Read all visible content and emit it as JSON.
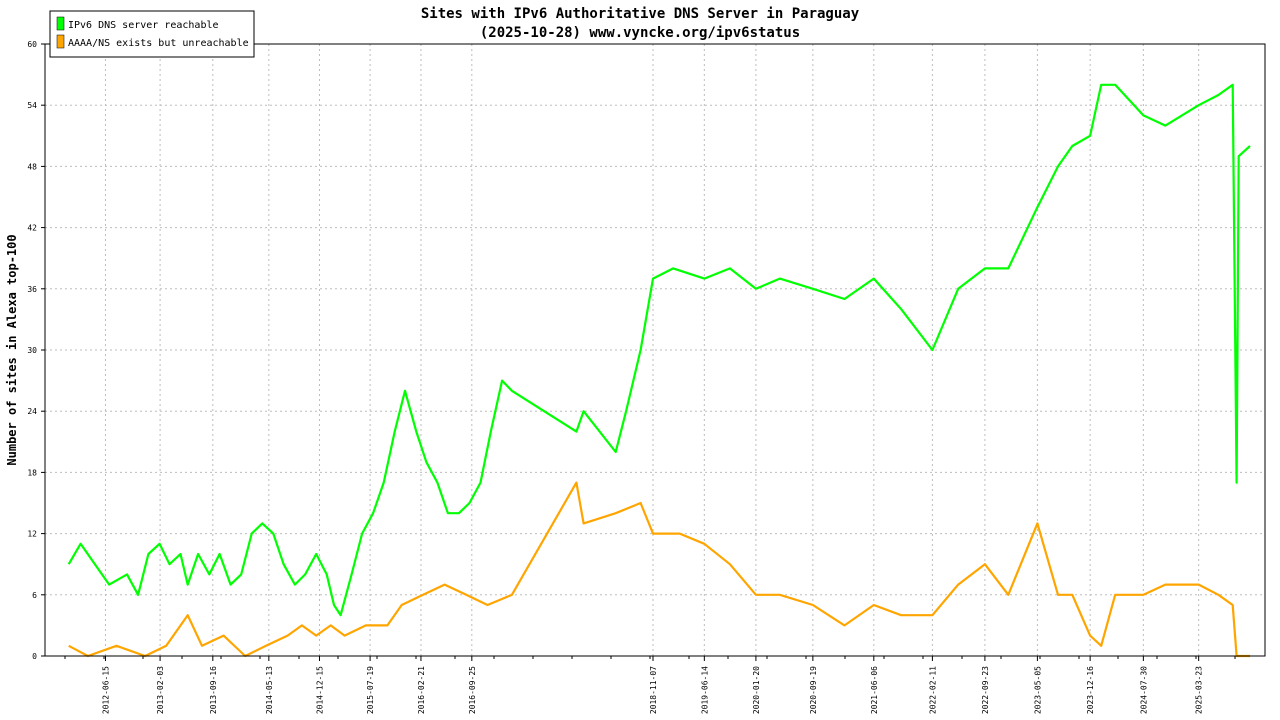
{
  "chart_data": {
    "type": "line",
    "title": "Sites with IPv6 Authoritative DNS Server in Paraguay",
    "subtitle": "(2025-10-28) www.vyncke.org/ipv6status",
    "ylabel": "Number of sites in Alexa top-100",
    "xlabel": "",
    "ylim": [
      0,
      60
    ],
    "xlim": [
      "2011-10-01",
      "2025-12-31"
    ],
    "yticks": [
      0,
      6,
      12,
      18,
      24,
      30,
      36,
      42,
      48,
      54,
      60
    ],
    "xticks": [
      "2012-06-15",
      "2013-02-03",
      "2013-09-16",
      "2014-05-13",
      "2014-12-15",
      "2015-07-19",
      "2016-02-21",
      "2016-09-25",
      "2018-11-07",
      "2019-06-14",
      "2020-01-20",
      "2020-09-19",
      "2021-06-06",
      "2022-02-11",
      "2022-09-23",
      "2023-05-05",
      "2023-12-16",
      "2024-07-30",
      "2025-03-23"
    ],
    "grid": true,
    "legend_position": "top-left",
    "series": [
      {
        "name": "IPv6 DNS server reachable",
        "color": "#00ff00",
        "points": [
          [
            "2012-01-10",
            9
          ],
          [
            "2012-03-01",
            11
          ],
          [
            "2012-05-01",
            9
          ],
          [
            "2012-07-01",
            7
          ],
          [
            "2012-09-15",
            8
          ],
          [
            "2012-11-01",
            6
          ],
          [
            "2012-12-15",
            10
          ],
          [
            "2013-02-01",
            11
          ],
          [
            "2013-03-15",
            9
          ],
          [
            "2013-05-01",
            10
          ],
          [
            "2013-06-01",
            7
          ],
          [
            "2013-07-15",
            10
          ],
          [
            "2013-09-01",
            8
          ],
          [
            "2013-10-15",
            10
          ],
          [
            "2013-12-01",
            7
          ],
          [
            "2014-01-15",
            8
          ],
          [
            "2014-03-01",
            12
          ],
          [
            "2014-04-15",
            13
          ],
          [
            "2014-06-01",
            12
          ],
          [
            "2014-07-15",
            9
          ],
          [
            "2014-09-01",
            7
          ],
          [
            "2014-10-15",
            8
          ],
          [
            "2014-12-01",
            10
          ],
          [
            "2015-01-15",
            8
          ],
          [
            "2015-02-15",
            5
          ],
          [
            "2015-03-15",
            4
          ],
          [
            "2015-05-01",
            8
          ],
          [
            "2015-06-15",
            12
          ],
          [
            "2015-08-01",
            14
          ],
          [
            "2015-09-15",
            17
          ],
          [
            "2015-11-01",
            22
          ],
          [
            "2015-12-15",
            26
          ],
          [
            "2016-02-01",
            22
          ],
          [
            "2016-03-15",
            19
          ],
          [
            "2016-05-01",
            17
          ],
          [
            "2016-06-15",
            14
          ],
          [
            "2016-08-01",
            14
          ],
          [
            "2016-09-15",
            15
          ],
          [
            "2016-11-01",
            17
          ],
          [
            "2016-12-15",
            22
          ],
          [
            "2017-02-01",
            27
          ],
          [
            "2017-03-15",
            26
          ],
          [
            "2017-12-15",
            22
          ],
          [
            "2018-01-15",
            24
          ],
          [
            "2018-06-01",
            20
          ],
          [
            "2018-07-15",
            24
          ],
          [
            "2018-09-15",
            30
          ],
          [
            "2018-11-07",
            37
          ],
          [
            "2019-02-01",
            38
          ],
          [
            "2019-06-14",
            37
          ],
          [
            "2019-10-01",
            38
          ],
          [
            "2020-01-20",
            36
          ],
          [
            "2020-05-01",
            37
          ],
          [
            "2020-09-19",
            36
          ],
          [
            "2021-02-01",
            35
          ],
          [
            "2021-06-06",
            37
          ],
          [
            "2021-10-01",
            34
          ],
          [
            "2022-02-11",
            30
          ],
          [
            "2022-06-01",
            36
          ],
          [
            "2022-09-23",
            38
          ],
          [
            "2023-01-01",
            38
          ],
          [
            "2023-05-05",
            44
          ],
          [
            "2023-08-01",
            48
          ],
          [
            "2023-10-01",
            50
          ],
          [
            "2023-12-16",
            51
          ],
          [
            "2024-02-01",
            56
          ],
          [
            "2024-04-01",
            56
          ],
          [
            "2024-07-30",
            53
          ],
          [
            "2024-11-01",
            52
          ],
          [
            "2025-03-23",
            54
          ],
          [
            "2025-06-15",
            55
          ],
          [
            "2025-08-15",
            56
          ],
          [
            "2025-09-01",
            17
          ],
          [
            "2025-09-10",
            49
          ],
          [
            "2025-10-28",
            50
          ]
        ]
      },
      {
        "name": "AAAA/NS exists but unreachable",
        "color": "#ffa500",
        "points": [
          [
            "2012-01-10",
            1
          ],
          [
            "2012-04-01",
            0
          ],
          [
            "2012-08-01",
            1
          ],
          [
            "2012-12-01",
            0
          ],
          [
            "2013-03-01",
            1
          ],
          [
            "2013-06-01",
            4
          ],
          [
            "2013-08-01",
            1
          ],
          [
            "2013-11-01",
            2
          ],
          [
            "2014-02-01",
            0
          ],
          [
            "2014-05-01",
            1
          ],
          [
            "2014-08-01",
            2
          ],
          [
            "2014-10-01",
            3
          ],
          [
            "2014-12-01",
            2
          ],
          [
            "2015-02-01",
            3
          ],
          [
            "2015-04-01",
            2
          ],
          [
            "2015-07-01",
            3
          ],
          [
            "2015-10-01",
            3
          ],
          [
            "2015-12-01",
            5
          ],
          [
            "2016-03-01",
            6
          ],
          [
            "2016-06-01",
            7
          ],
          [
            "2016-09-01",
            6
          ],
          [
            "2016-12-01",
            5
          ],
          [
            "2017-03-15",
            6
          ],
          [
            "2017-12-15",
            17
          ],
          [
            "2018-01-15",
            13
          ],
          [
            "2018-06-01",
            14
          ],
          [
            "2018-09-15",
            15
          ],
          [
            "2018-11-07",
            12
          ],
          [
            "2019-03-01",
            12
          ],
          [
            "2019-06-14",
            11
          ],
          [
            "2019-10-01",
            9
          ],
          [
            "2020-01-20",
            6
          ],
          [
            "2020-05-01",
            6
          ],
          [
            "2020-09-19",
            5
          ],
          [
            "2021-02-01",
            3
          ],
          [
            "2021-06-06",
            5
          ],
          [
            "2021-10-01",
            4
          ],
          [
            "2022-02-11",
            4
          ],
          [
            "2022-06-01",
            7
          ],
          [
            "2022-09-23",
            9
          ],
          [
            "2023-01-01",
            6
          ],
          [
            "2023-05-05",
            13
          ],
          [
            "2023-08-01",
            6
          ],
          [
            "2023-10-01",
            6
          ],
          [
            "2023-12-16",
            2
          ],
          [
            "2024-02-01",
            1
          ],
          [
            "2024-04-01",
            6
          ],
          [
            "2024-07-30",
            6
          ],
          [
            "2024-11-01",
            7
          ],
          [
            "2025-03-23",
            7
          ],
          [
            "2025-06-15",
            6
          ],
          [
            "2025-08-15",
            5
          ],
          [
            "2025-09-01",
            0
          ],
          [
            "2025-10-28",
            0
          ]
        ]
      }
    ]
  }
}
